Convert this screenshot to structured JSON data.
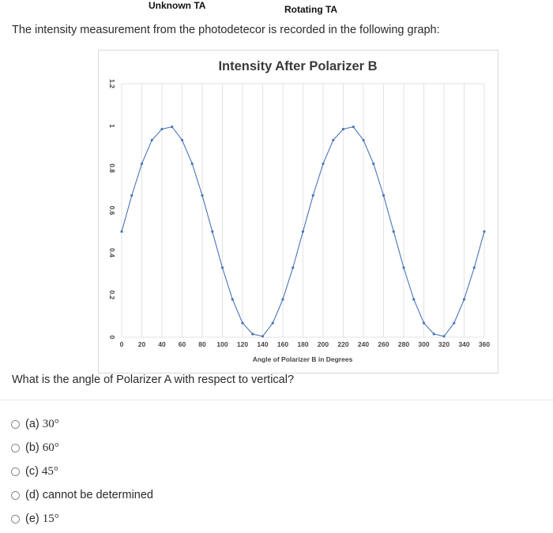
{
  "header": {
    "unknown_label": "Unknown TA",
    "rotating_label": "Rotating TA"
  },
  "intro_text": "The intensity measurement from the photodetecor is recorded in the following graph:",
  "question_text": "What is the angle of Polarizer A with respect to vertical?",
  "options": [
    {
      "letter": "(a)",
      "value": "30°"
    },
    {
      "letter": "(b)",
      "value": "60°"
    },
    {
      "letter": "(c)",
      "value": "45°"
    },
    {
      "letter": "(d)",
      "value": "cannot be determined"
    },
    {
      "letter": "(e)",
      "value": "15°"
    }
  ],
  "chart_data": {
    "type": "line",
    "title": "Intensity After Polarizer B",
    "xlabel": "Angle of Polarizer B in Degrees",
    "ylabel": "",
    "xlim": [
      0,
      360
    ],
    "ylim": [
      0,
      1.2
    ],
    "x_ticks": [
      "0",
      "20",
      "40",
      "60",
      "80",
      "100",
      "120",
      "140",
      "160",
      "180",
      "200",
      "220",
      "240",
      "260",
      "280",
      "300",
      "320",
      "340",
      "360"
    ],
    "y_ticks": [
      "0",
      "0.2",
      "0.4",
      "0.6",
      "0.8",
      "1",
      "1.2"
    ],
    "grid": "vertical",
    "line_color": "#4a74b8",
    "series": [
      {
        "x": [
          0,
          10,
          20,
          30,
          40,
          50,
          60,
          70,
          80,
          90,
          100,
          110,
          120,
          130,
          140,
          150,
          160,
          170,
          180,
          190,
          200,
          210,
          220,
          230,
          240,
          250,
          260,
          270,
          280,
          290,
          300,
          310,
          320,
          330,
          340,
          350,
          360
        ],
        "values": [
          0.5,
          0.671,
          0.821,
          0.933,
          0.985,
          0.996,
          0.933,
          0.821,
          0.671,
          0.5,
          0.329,
          0.179,
          0.067,
          0.015,
          0.004,
          0.067,
          0.179,
          0.329,
          0.5,
          0.671,
          0.821,
          0.933,
          0.985,
          0.996,
          0.933,
          0.821,
          0.671,
          0.5,
          0.329,
          0.179,
          0.067,
          0.015,
          0.004,
          0.067,
          0.179,
          0.329,
          0.5
        ]
      }
    ]
  }
}
